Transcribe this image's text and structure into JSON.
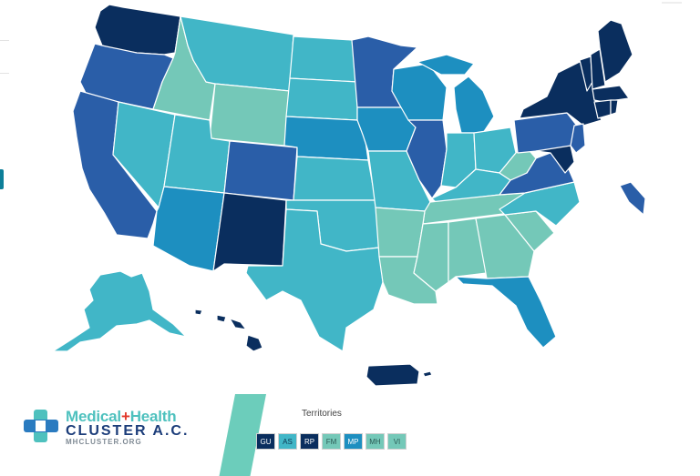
{
  "colors": {
    "navy": "#0a2e5e",
    "blue": "#2a5ea8",
    "mid_blue": "#1d8fc0",
    "teal": "#41b6c7",
    "light_teal": "#74c8b8"
  },
  "logo": {
    "line1a": "Medical",
    "plus": "+",
    "line1b": "Health",
    "line2": "CLUSTER A.C.",
    "line3": "MHCLUSTER.ORG"
  },
  "territories": {
    "title": "Territories",
    "items": [
      {
        "label": "GU",
        "color": "#0a2e5e",
        "text_color": "#ffffff"
      },
      {
        "label": "AS",
        "color": "#41b6c7",
        "text_color": "#0c3550"
      },
      {
        "label": "RP",
        "color": "#0a2e5e",
        "text_color": "#ffffff"
      },
      {
        "label": "FM",
        "color": "#74c8b8",
        "text_color": "#2d5a55"
      },
      {
        "label": "MP",
        "color": "#1d8fc0",
        "text_color": "#ffffff"
      },
      {
        "label": "MH",
        "color": "#74c8b8",
        "text_color": "#2d5a55"
      },
      {
        "label": "VI",
        "color": "#74c8b8",
        "text_color": "#2d5a55"
      }
    ]
  }
}
